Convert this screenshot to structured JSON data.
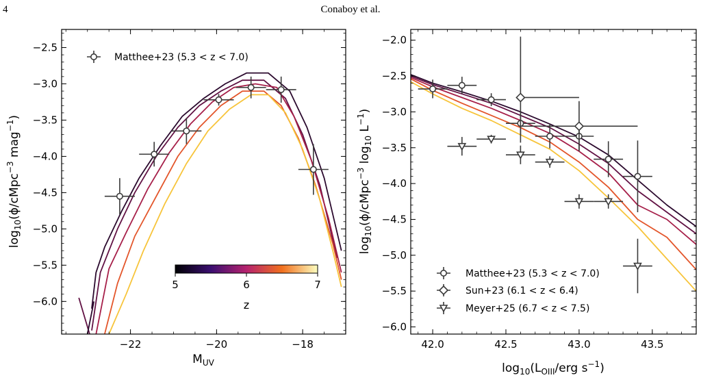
{
  "page": {
    "number": "4",
    "running_head": "Conaboy et al."
  },
  "colors": {
    "z5": "#2b0a2e",
    "z5_5": "#611244",
    "z6": "#a61f49",
    "z6_5": "#e3552a",
    "z7": "#f7c43a",
    "obs": "#3a3a3a"
  },
  "chart_data": [
    {
      "type": "line",
      "xlabel": "M_UV",
      "ylabel": "log10(φ/cMpc^-3 mag^-1)",
      "xlim": [
        -23.6,
        -17.0
      ],
      "ylim": [
        -6.45,
        -2.25
      ],
      "xticks": [
        -22,
        -20,
        -18
      ],
      "xtick_labels": [
        "−22",
        "−20",
        "−18"
      ],
      "yticks": [
        -2.5,
        -3.0,
        -3.5,
        -4.0,
        -4.5,
        -5.0,
        -5.5,
        -6.0
      ],
      "ytick_labels": [
        "−2.5",
        "−3.0",
        "−3.5",
        "−4.0",
        "−4.5",
        "−5.0",
        "−5.5",
        "−6.0"
      ],
      "colorbar": {
        "label": "z",
        "ticks": [
          "5",
          "6",
          "7"
        ]
      },
      "series": [
        {
          "z": 5.0,
          "color": "#2b0a2e",
          "points": [
            [
              -22.9,
              -6.1
            ],
            [
              -22.8,
              -5.6
            ],
            [
              -22.6,
              -5.25
            ],
            [
              -22.2,
              -4.75
            ],
            [
              -21.8,
              -4.3
            ],
            [
              -21.3,
              -3.85
            ],
            [
              -20.8,
              -3.45
            ],
            [
              -20.3,
              -3.2
            ],
            [
              -19.8,
              -3.0
            ],
            [
              -19.3,
              -2.85
            ],
            [
              -18.8,
              -2.85
            ],
            [
              -18.3,
              -3.1
            ],
            [
              -17.9,
              -3.6
            ],
            [
              -17.5,
              -4.3
            ],
            [
              -17.1,
              -5.3
            ]
          ]
        },
        {
          "z": 5.5,
          "color": "#611244",
          "points": [
            [
              -22.9,
              -6.4
            ],
            [
              -22.7,
              -5.6
            ],
            [
              -22.3,
              -5.0
            ],
            [
              -21.9,
              -4.5
            ],
            [
              -21.4,
              -4.0
            ],
            [
              -20.9,
              -3.6
            ],
            [
              -20.4,
              -3.3
            ],
            [
              -19.9,
              -3.1
            ],
            [
              -19.4,
              -2.95
            ],
            [
              -18.9,
              -2.95
            ],
            [
              -18.4,
              -3.2
            ],
            [
              -18.0,
              -3.7
            ],
            [
              -17.6,
              -4.4
            ],
            [
              -17.2,
              -5.4
            ]
          ]
        },
        {
          "z": 6.0,
          "color": "#a61f49",
          "points": [
            [
              -22.8,
              -6.45
            ],
            [
              -22.5,
              -5.55
            ],
            [
              -22.1,
              -5.05
            ],
            [
              -21.6,
              -4.45
            ],
            [
              -21.1,
              -3.95
            ],
            [
              -20.6,
              -3.55
            ],
            [
              -20.1,
              -3.25
            ],
            [
              -19.6,
              -3.05
            ],
            [
              -19.1,
              -3.0
            ],
            [
              -18.6,
              -3.05
            ],
            [
              -18.2,
              -3.45
            ],
            [
              -17.8,
              -4.05
            ],
            [
              -17.4,
              -4.85
            ],
            [
              -17.1,
              -5.6
            ]
          ]
        },
        {
          "z": 6.5,
          "color": "#e3552a",
          "points": [
            [
              -22.6,
              -6.45
            ],
            [
              -22.3,
              -5.75
            ],
            [
              -21.9,
              -5.1
            ],
            [
              -21.4,
              -4.55
            ],
            [
              -20.9,
              -4.0
            ],
            [
              -20.4,
              -3.6
            ],
            [
              -19.9,
              -3.3
            ],
            [
              -19.4,
              -3.1
            ],
            [
              -18.9,
              -3.1
            ],
            [
              -18.5,
              -3.3
            ],
            [
              -18.1,
              -3.75
            ],
            [
              -17.7,
              -4.4
            ],
            [
              -17.3,
              -5.2
            ],
            [
              -17.1,
              -5.7
            ]
          ]
        },
        {
          "z": 7.0,
          "color": "#f7c43a",
          "points": [
            [
              -22.5,
              -6.45
            ],
            [
              -22.1,
              -5.9
            ],
            [
              -21.7,
              -5.3
            ],
            [
              -21.2,
              -4.65
            ],
            [
              -20.7,
              -4.1
            ],
            [
              -20.2,
              -3.65
            ],
            [
              -19.7,
              -3.35
            ],
            [
              -19.2,
              -3.15
            ],
            [
              -18.8,
              -3.15
            ],
            [
              -18.4,
              -3.4
            ],
            [
              -18.0,
              -3.9
            ],
            [
              -17.6,
              -4.6
            ],
            [
              -17.3,
              -5.3
            ],
            [
              -17.1,
              -5.8
            ]
          ]
        },
        {
          "z": 5.0,
          "color": "#611244",
          "points": [
            [
              -23.2,
              -5.95
            ],
            [
              -22.95,
              -6.45
            ]
          ]
        },
        {
          "z": 5.0,
          "color": "#2b0a2e",
          "points": [
            [
              -23.0,
              -6.45
            ],
            [
              -22.85,
              -6.0
            ]
          ]
        }
      ],
      "legend": [
        {
          "label": "Matthee+23 (5.3 < z < 7.0)",
          "marker": "circle"
        }
      ],
      "observations": [
        {
          "dataset": "Matthee+23",
          "marker": "circle",
          "points": [
            {
              "x": -22.25,
              "y": -4.55,
              "xerr": 0.35,
              "yerr": 0.25
            },
            {
              "x": -21.45,
              "y": -3.97,
              "xerr": 0.35,
              "yerr": 0.17
            },
            {
              "x": -20.7,
              "y": -3.65,
              "xerr": 0.35,
              "yerr": 0.18
            },
            {
              "x": -19.95,
              "y": -3.22,
              "xerr": 0.35,
              "yerr": 0.08
            },
            {
              "x": -19.2,
              "y": -3.05,
              "xerr": 0.35,
              "yerr": 0.15
            },
            {
              "x": -18.5,
              "y": -3.08,
              "xerr": 0.35,
              "yerr": 0.18
            },
            {
              "x": -17.75,
              "y": -4.18,
              "xerr": 0.35,
              "yerr": 0.35
            }
          ]
        }
      ]
    },
    {
      "type": "line",
      "xlabel": "log10(L_OIII/erg s^-1)",
      "ylabel": "log10(φ/cMpc^-3 log10 L^-1)",
      "xlim": [
        41.85,
        43.8
      ],
      "ylim": [
        -6.1,
        -1.85
      ],
      "xticks": [
        42.0,
        42.5,
        43.0,
        43.5
      ],
      "xtick_labels": [
        "42.0",
        "42.5",
        "43.0",
        "43.5"
      ],
      "yticks": [
        -2.0,
        -2.5,
        -3.0,
        -3.5,
        -4.0,
        -4.5,
        -5.0,
        -5.5,
        -6.0
      ],
      "ytick_labels": [
        "−2.0",
        "−2.5",
        "−3.0",
        "−3.5",
        "−4.0",
        "−4.5",
        "−5.0",
        "−5.5",
        "−6.0"
      ],
      "series": [
        {
          "z": 5.0,
          "color": "#2b0a2e",
          "points": [
            [
              41.85,
              -2.48
            ],
            [
              42.0,
              -2.6
            ],
            [
              42.2,
              -2.72
            ],
            [
              42.4,
              -2.85
            ],
            [
              42.6,
              -3.0
            ],
            [
              42.8,
              -3.17
            ],
            [
              43.0,
              -3.35
            ],
            [
              43.2,
              -3.6
            ],
            [
              43.4,
              -3.95
            ],
            [
              43.6,
              -4.3
            ],
            [
              43.8,
              -4.6
            ]
          ]
        },
        {
          "z": 5.5,
          "color": "#611244",
          "points": [
            [
              41.85,
              -2.5
            ],
            [
              42.0,
              -2.62
            ],
            [
              42.2,
              -2.75
            ],
            [
              42.4,
              -2.88
            ],
            [
              42.6,
              -3.05
            ],
            [
              42.8,
              -3.22
            ],
            [
              43.0,
              -3.45
            ],
            [
              43.2,
              -3.72
            ],
            [
              43.4,
              -4.1
            ],
            [
              43.6,
              -4.4
            ],
            [
              43.8,
              -4.7
            ]
          ]
        },
        {
          "z": 6.0,
          "color": "#a61f49",
          "points": [
            [
              41.85,
              -2.52
            ],
            [
              42.0,
              -2.65
            ],
            [
              42.2,
              -2.8
            ],
            [
              42.4,
              -2.95
            ],
            [
              42.6,
              -3.12
            ],
            [
              42.8,
              -3.3
            ],
            [
              43.0,
              -3.55
            ],
            [
              43.2,
              -3.85
            ],
            [
              43.4,
              -4.3
            ],
            [
              43.6,
              -4.5
            ],
            [
              43.8,
              -4.85
            ]
          ]
        },
        {
          "z": 6.5,
          "color": "#e3552a",
          "points": [
            [
              41.85,
              -2.54
            ],
            [
              42.0,
              -2.7
            ],
            [
              42.2,
              -2.88
            ],
            [
              42.4,
              -3.05
            ],
            [
              42.6,
              -3.22
            ],
            [
              42.8,
              -3.42
            ],
            [
              43.0,
              -3.7
            ],
            [
              43.2,
              -4.05
            ],
            [
              43.4,
              -4.5
            ],
            [
              43.6,
              -4.75
            ],
            [
              43.8,
              -5.2
            ]
          ]
        },
        {
          "z": 7.0,
          "color": "#f7c43a",
          "points": [
            [
              41.85,
              -2.58
            ],
            [
              42.0,
              -2.75
            ],
            [
              42.2,
              -2.95
            ],
            [
              42.4,
              -3.12
            ],
            [
              42.6,
              -3.32
            ],
            [
              42.8,
              -3.52
            ],
            [
              43.0,
              -3.82
            ],
            [
              43.2,
              -4.2
            ],
            [
              43.4,
              -4.6
            ],
            [
              43.6,
              -5.05
            ],
            [
              43.8,
              -5.5
            ]
          ]
        }
      ],
      "legend": [
        {
          "label": "Matthee+23 (5.3 < z < 7.0)",
          "marker": "circle"
        },
        {
          "label": "Sun+23 (6.1 < z < 6.4)",
          "marker": "diamond"
        },
        {
          "label": "Meyer+25 (6.7 < z < 7.5)",
          "marker": "triangle-down"
        }
      ],
      "observations": [
        {
          "dataset": "Matthee+23",
          "marker": "circle",
          "points": [
            {
              "x": 42.0,
              "y": -2.68,
              "xerr": 0.1,
              "yerr": 0.13
            },
            {
              "x": 42.2,
              "y": -2.63,
              "xerr": 0.1,
              "yerr": 0.12
            },
            {
              "x": 42.4,
              "y": -2.83,
              "xerr": 0.1,
              "yerr": 0.09
            },
            {
              "x": 42.6,
              "y": -3.16,
              "xerr": 0.1,
              "yerr": 0.17
            },
            {
              "x": 42.8,
              "y": -3.34,
              "xerr": 0.1,
              "yerr": 0.17
            },
            {
              "x": 43.0,
              "y": -3.34,
              "xerr": 0.1,
              "yerr": 0.2
            },
            {
              "x": 43.2,
              "y": -3.66,
              "xerr": 0.1,
              "yerr": 0.25
            },
            {
              "x": 43.4,
              "y": -3.9,
              "xerr": 0.1,
              "yerr": 0.5
            }
          ]
        },
        {
          "dataset": "Sun+23",
          "marker": "diamond",
          "points": [
            {
              "x": 42.6,
              "y": -2.8,
              "xerr_lo": 0.0,
              "xerr_hi": 0.4,
              "yerr_lo": 0.63,
              "yerr_hi": 0.85
            },
            {
              "x": 43.0,
              "y": -3.2,
              "xerr_lo": 0.4,
              "xerr_hi": 0.4,
              "yerr_lo": 0.35,
              "yerr_hi": 0.35
            }
          ]
        },
        {
          "dataset": "Meyer+25",
          "marker": "triangle-down",
          "points": [
            {
              "x": 42.2,
              "y": -3.48,
              "xerr": 0.1,
              "yerr": 0.13
            },
            {
              "x": 42.4,
              "y": -3.38,
              "xerr": 0.1,
              "yerr": 0.06
            },
            {
              "x": 42.6,
              "y": -3.6,
              "xerr": 0.1,
              "yerr": 0.13
            },
            {
              "x": 42.8,
              "y": -3.7,
              "xerr": 0.1,
              "yerr": 0.08
            },
            {
              "x": 43.0,
              "y": -4.25,
              "xerr": 0.1,
              "yerr": 0.1
            },
            {
              "x": 43.2,
              "y": -4.25,
              "xerr": 0.1,
              "yerr": 0.1
            },
            {
              "x": 43.4,
              "y": -5.15,
              "xerr": 0.1,
              "yerr": 0.38
            }
          ]
        }
      ]
    }
  ]
}
